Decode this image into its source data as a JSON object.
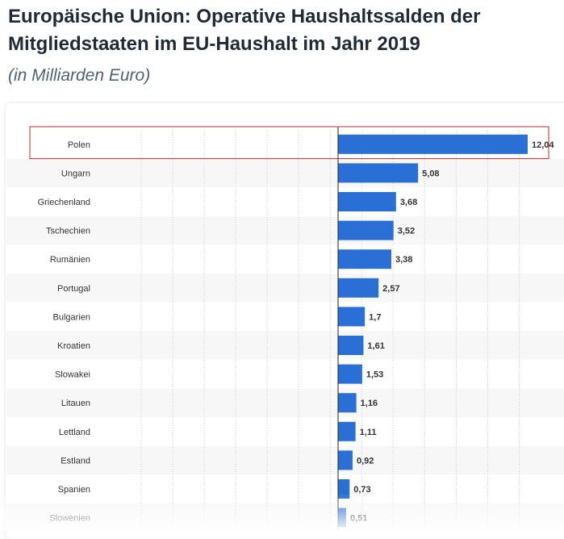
{
  "header": {
    "title": "Europäische Union: Operative Haushaltssalden der Mitgliedstaaten im EU-Haushalt im Jahr 2019",
    "subtitle": "(in Milliarden Euro)"
  },
  "colors": {
    "bar": "#2a6fd6",
    "highlight_border": "#c0282d",
    "stripe": "#f7f7f7",
    "grid": "#cccccc",
    "zero_line": "#222222"
  },
  "chart_data": {
    "type": "bar",
    "orientation": "horizontal",
    "title": "Europäische Union: Operative Haushaltssalden der Mitgliedstaaten im EU-Haushalt im Jahr 2019",
    "subtitle": "(in Milliarden Euro)",
    "xlabel": "",
    "ylabel": "",
    "xlim": [
      -12.5,
      12.5
    ],
    "grid": true,
    "highlighted_category": "Polen",
    "categories": [
      "Polen",
      "Ungarn",
      "Griechenland",
      "Tschechien",
      "Rumänien",
      "Portugal",
      "Bulgarien",
      "Kroatien",
      "Slowakei",
      "Litauen",
      "Lettland",
      "Estland",
      "Spanien",
      "Slowenien"
    ],
    "values": [
      12.04,
      5.08,
      3.68,
      3.52,
      3.38,
      2.57,
      1.7,
      1.61,
      1.53,
      1.16,
      1.11,
      0.92,
      0.73,
      0.51
    ],
    "value_labels": [
      "12,04",
      "5,08",
      "3,68",
      "3,52",
      "3,38",
      "2,57",
      "1,7",
      "1,61",
      "1,53",
      "1,16",
      "1,11",
      "0,92",
      "0,73",
      "0,51"
    ]
  }
}
